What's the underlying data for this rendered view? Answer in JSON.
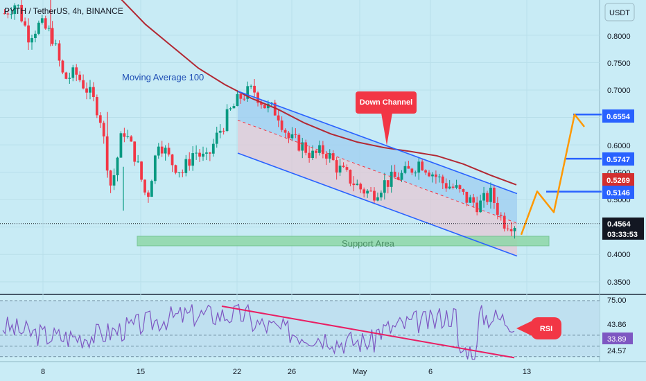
{
  "header": {
    "title": "PYTH / TetherUS, 4h, BINANCE",
    "currency": "USDT"
  },
  "price_axis": {
    "ticks": [
      "0.8000",
      "0.7500",
      "0.7000",
      "0.6000",
      "0.5500",
      "0.5000",
      "0.4000",
      "0.3500"
    ]
  },
  "time_axis": {
    "ticks": [
      "8",
      "15",
      "22",
      "26",
      "May",
      "6",
      "13"
    ]
  },
  "annotations": {
    "moving_average": "Moving Average 100",
    "down_channel": "Down Channel",
    "support_area": "Support Area",
    "rsi": "RSI"
  },
  "price_badges": {
    "target_1": "0.6554",
    "target_2": "0.5747",
    "ma_value": "0.5269",
    "target_3": "0.5146",
    "current_price": "0.4564",
    "countdown": "03:33:53"
  },
  "rsi_axis": {
    "ticks": [
      "75.00",
      "43.86",
      "33.89",
      "24.57"
    ]
  },
  "colors": {
    "background": "#c9ecf6",
    "candle_up": "#089981",
    "candle_down": "#f23645",
    "moving_average": "#b22833",
    "channel_line": "#2962ff",
    "projection": "#ff9800",
    "support_fill": "#8fd8a8",
    "rsi_line": "#7e57c2",
    "rsi_trend": "#e91e63",
    "badge_blue": "#2962ff",
    "badge_red": "#d32f2f",
    "badge_dark": "#131722"
  },
  "chart_data": {
    "type": "candlestick",
    "title": "PYTH / TetherUS, 4h, BINANCE",
    "ylim": [
      0.33,
      0.87
    ],
    "ylabel": "USDT",
    "x_ticks": [
      "8",
      "15",
      "22",
      "26",
      "May",
      "6",
      "13"
    ],
    "ohlc_path": [
      0.84,
      0.86,
      0.8,
      0.82,
      0.8,
      0.72,
      0.73,
      0.7,
      0.66,
      0.52,
      0.63,
      0.58,
      0.5,
      0.61,
      0.57,
      0.55,
      0.59,
      0.57,
      0.62,
      0.66,
      0.69,
      0.7,
      0.67,
      0.66,
      0.61,
      0.6,
      0.58,
      0.59,
      0.56,
      0.54,
      0.52,
      0.51,
      0.53,
      0.54,
      0.55,
      0.57,
      0.55,
      0.53,
      0.52,
      0.5,
      0.49,
      0.51,
      0.46,
      0.456
    ],
    "moving_average_100": [
      0.93,
      0.91,
      0.87,
      0.82,
      0.78,
      0.74,
      0.71,
      0.685,
      0.665,
      0.64,
      0.62,
      0.605,
      0.595,
      0.588,
      0.58,
      0.565,
      0.545,
      0.527
    ],
    "down_channel": {
      "upper": [
        [
          0.698,
          0.511
        ]
      ],
      "mid": [
        [
          0.645,
          0.457
        ]
      ],
      "lower": [
        [
          0.585,
          0.397
        ]
      ]
    },
    "support_area": [
      0.4157,
      0.4332
    ],
    "projection": [
      0.436,
      0.515,
      0.477,
      0.6554,
      0.633
    ],
    "levels": [
      0.6554,
      0.5747,
      0.5146,
      0.4564
    ],
    "rsi": {
      "ylim": [
        15,
        85
      ],
      "levels": [
        75.0,
        43.86,
        33.89,
        24.57
      ],
      "current": 33.89
    }
  }
}
